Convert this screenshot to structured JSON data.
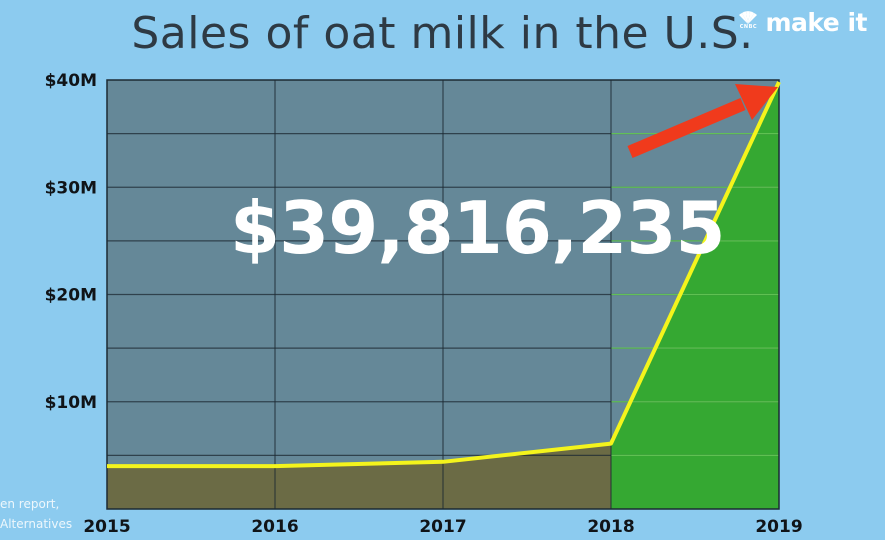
{
  "brand": {
    "sub": "CNBC",
    "name": "make it"
  },
  "highlight": "$39,816,235",
  "source_lines": [
    "en report,",
    "Alternatives"
  ],
  "colors": {
    "background": "#8ccbef",
    "plot_area": "#658898",
    "grid": "#1d2a33",
    "fill_early": "#6b6b45",
    "fill_late": "#35a832",
    "line": "#f4f41c",
    "arrow": "#f03a1c"
  },
  "chart_data": {
    "type": "area",
    "title": "Sales of oat milk in the U.S.",
    "x": [
      2015,
      2016,
      2017,
      2018,
      2019
    ],
    "x_tick_labels": [
      "2015",
      "2016",
      "2017",
      "2018",
      "2019"
    ],
    "values": [
      4000000,
      4000000,
      4400000,
      6100000,
      39816235
    ],
    "ylim": [
      0,
      40000000
    ],
    "y_ticks": [
      10000000,
      20000000,
      30000000,
      40000000
    ],
    "y_tick_labels": [
      "$10M",
      "$20M",
      "$30M",
      "$40M"
    ],
    "grid": true,
    "highlight_segment": "2018-2019"
  }
}
